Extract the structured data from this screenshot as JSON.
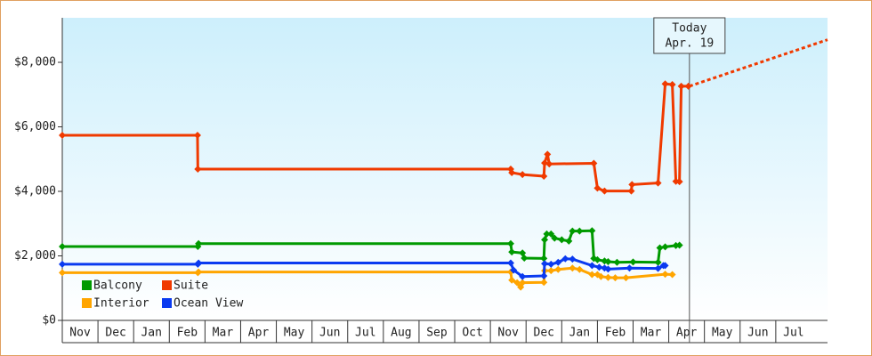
{
  "chart_data": {
    "type": "line",
    "categories": [
      "Nov",
      "Dec",
      "Jan",
      "Feb",
      "Mar",
      "Apr",
      "May",
      "Jun",
      "Jul",
      "Aug",
      "Sep",
      "Oct",
      "Nov",
      "Dec",
      "Jan",
      "Feb",
      "Mar",
      "Apr",
      "May",
      "Jun",
      "Jul"
    ],
    "xlim": [
      0,
      21.45
    ],
    "ylim": [
      0,
      9380
    ],
    "yticks": [
      {
        "value": 0,
        "label": "$0"
      },
      {
        "value": 2000,
        "label": "$2,000"
      },
      {
        "value": 4000,
        "label": "$4,000"
      },
      {
        "value": 6000,
        "label": "$6,000"
      },
      {
        "value": 8000,
        "label": "$8,000"
      }
    ],
    "legend": "bottom-left",
    "series": [
      {
        "name": "Balcony",
        "color": "#009a00",
        "x": [
          0,
          3.8,
          3.82,
          12.57,
          12.6,
          12.9,
          12.95,
          13.5,
          13.52,
          13.58,
          13.7,
          13.8,
          14.0,
          14.2,
          14.3,
          14.5,
          14.85,
          14.9,
          15.0,
          15.2,
          15.3,
          15.55,
          16.0,
          16.7,
          16.75,
          16.9,
          17.2,
          17.3
        ],
        "values": [
          2290,
          2290,
          2380,
          2380,
          2120,
          2090,
          1930,
          1920,
          2500,
          2680,
          2680,
          2550,
          2500,
          2460,
          2770,
          2770,
          2780,
          1920,
          1880,
          1840,
          1820,
          1800,
          1810,
          1800,
          2250,
          2280,
          2320,
          2330
        ]
      },
      {
        "name": "Suite",
        "color": "#f03a00",
        "x": [
          0,
          3.79,
          3.8,
          12.57,
          12.6,
          12.9,
          13.5,
          13.52,
          13.6,
          13.65,
          14.9,
          15.0,
          15.2,
          15.95,
          15.97,
          16.7,
          16.9,
          17.1,
          17.2,
          17.3,
          17.35,
          17.55
        ],
        "values": [
          5740,
          5740,
          4690,
          4690,
          4580,
          4520,
          4470,
          4880,
          5150,
          4850,
          4870,
          4100,
          4010,
          4010,
          4210,
          4260,
          7330,
          7310,
          4310,
          4300,
          7260,
          7260
        ]
      },
      {
        "name": "Interior",
        "color": "#ffa500",
        "x": [
          0,
          3.8,
          3.82,
          12.57,
          12.6,
          12.75,
          12.85,
          12.9,
          13.5,
          13.52,
          13.7,
          13.9,
          14.3,
          14.5,
          14.85,
          15.0,
          15.1,
          15.3,
          15.5,
          15.8,
          16.9,
          17.1
        ],
        "values": [
          1480,
          1480,
          1500,
          1500,
          1250,
          1170,
          1030,
          1170,
          1180,
          1540,
          1540,
          1580,
          1620,
          1580,
          1420,
          1420,
          1360,
          1330,
          1320,
          1320,
          1430,
          1420
        ]
      },
      {
        "name": "Ocean View",
        "color": "#0a3af0",
        "x": [
          0,
          3.8,
          3.82,
          12.57,
          12.65,
          12.9,
          13.5,
          13.52,
          13.7,
          13.9,
          14.1,
          14.3,
          14.85,
          15.05,
          15.2,
          15.3,
          15.9,
          16.7,
          16.85,
          16.9
        ],
        "values": [
          1740,
          1740,
          1780,
          1780,
          1560,
          1360,
          1380,
          1760,
          1740,
          1800,
          1910,
          1900,
          1700,
          1650,
          1620,
          1590,
          1620,
          1610,
          1700,
          1700
        ]
      }
    ],
    "forecast": {
      "color": "#f03a00",
      "x": [
        17.58,
        21.45
      ],
      "values": [
        7260,
        8700
      ]
    },
    "today": {
      "x": 17.58,
      "label": [
        "Today",
        "Apr. 19"
      ]
    }
  }
}
